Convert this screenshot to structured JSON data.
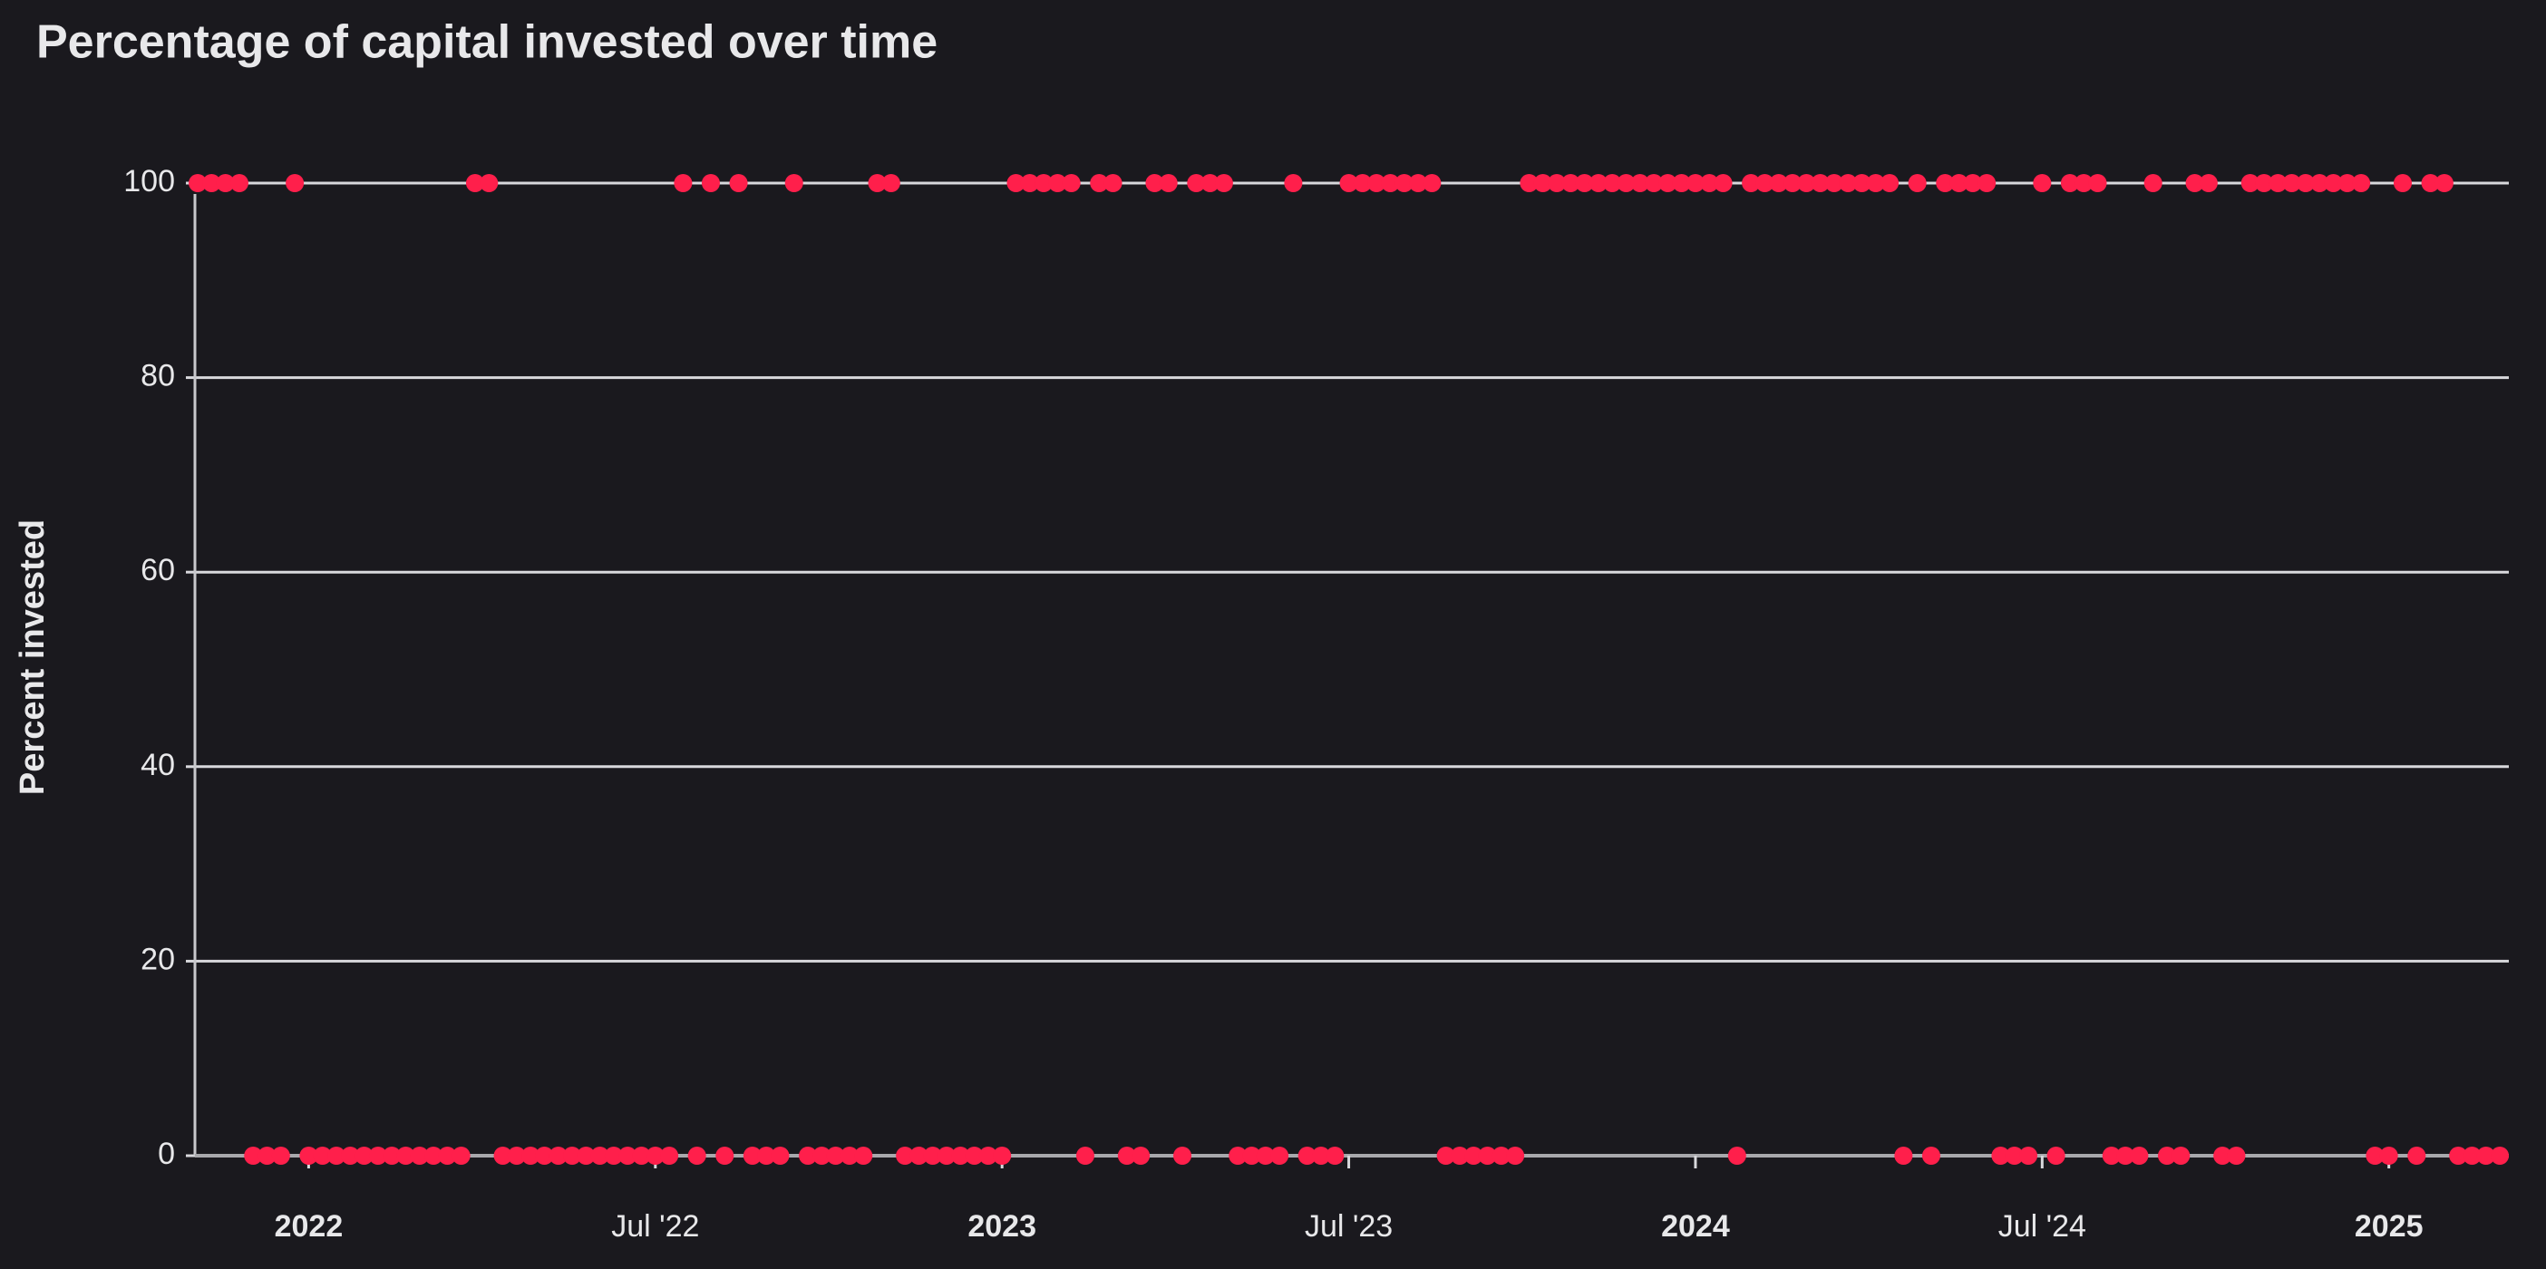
{
  "chart_data": {
    "type": "scatter",
    "title": "Percentage of capital invested over time",
    "y_label": "Percent invested",
    "color": "#ff1f4b",
    "grid": true,
    "xlim": [
      2021.836,
      2025.173
    ],
    "xticks": [
      2022,
      {
        "value": 2022.5,
        "label": "Jul '22"
      },
      2023,
      {
        "value": 2023.5,
        "label": "Jul '23"
      },
      2024,
      {
        "value": 2024.5,
        "label": "Jul '24"
      },
      2025
    ],
    "ylim": [
      0,
      100
    ],
    "yticks": [
      0,
      20,
      40,
      60,
      80,
      100
    ],
    "x": [
      2021.84,
      2021.86,
      2021.88,
      2021.9,
      2021.92,
      2021.94,
      2021.96,
      2021.98,
      2022.0,
      2022.02,
      2022.04,
      2022.06,
      2022.08,
      2022.1,
      2022.12,
      2022.14,
      2022.16,
      2022.18,
      2022.2,
      2022.22,
      2022.24,
      2022.26,
      2022.28,
      2022.3,
      2022.32,
      2022.34,
      2022.36,
      2022.38,
      2022.4,
      2022.42,
      2022.44,
      2022.46,
      2022.48,
      2022.5,
      2022.52,
      2022.54,
      2022.56,
      2022.58,
      2022.6,
      2022.62,
      2022.64,
      2022.66,
      2022.68,
      2022.7,
      2022.72,
      2022.74,
      2022.76,
      2022.78,
      2022.8,
      2022.82,
      2022.84,
      2022.86,
      2022.88,
      2022.9,
      2022.92,
      2022.94,
      2022.96,
      2022.98,
      2023.0,
      2023.02,
      2023.04,
      2023.06,
      2023.08,
      2023.1,
      2023.12,
      2023.14,
      2023.16,
      2023.18,
      2023.2,
      2023.22,
      2023.24,
      2023.26,
      2023.28,
      2023.3,
      2023.32,
      2023.34,
      2023.36,
      2023.38,
      2023.4,
      2023.42,
      2023.44,
      2023.46,
      2023.48,
      2023.5,
      2023.52,
      2023.54,
      2023.56,
      2023.58,
      2023.6,
      2023.62,
      2023.64,
      2023.66,
      2023.68,
      2023.7,
      2023.72,
      2023.74,
      2023.76,
      2023.78,
      2023.8,
      2023.82,
      2023.84,
      2023.86,
      2023.88,
      2023.9,
      2023.92,
      2023.94,
      2023.96,
      2023.98,
      2024.0,
      2024.02,
      2024.04,
      2024.06,
      2024.08,
      2024.1,
      2024.12,
      2024.14,
      2024.16,
      2024.18,
      2024.2,
      2024.22,
      2024.24,
      2024.26,
      2024.28,
      2024.3,
      2024.32,
      2024.34,
      2024.36,
      2024.38,
      2024.4,
      2024.42,
      2024.44,
      2024.46,
      2024.48,
      2024.5,
      2024.52,
      2024.54,
      2024.56,
      2024.58,
      2024.6,
      2024.62,
      2024.64,
      2024.66,
      2024.68,
      2024.7,
      2024.72,
      2024.74,
      2024.76,
      2024.78,
      2024.8,
      2024.82,
      2024.84,
      2024.86,
      2024.88,
      2024.9,
      2024.92,
      2024.94,
      2024.96,
      2024.98,
      2025.0,
      2025.02,
      2025.04,
      2025.06,
      2025.08,
      2025.1,
      2025.12,
      2025.14,
      2025.16
    ],
    "values": [
      100,
      100,
      100,
      100,
      0,
      0,
      0,
      100,
      0,
      0,
      0,
      0,
      0,
      0,
      0,
      0,
      0,
      0,
      0,
      0,
      100,
      100,
      0,
      0,
      0,
      0,
      0,
      0,
      0,
      0,
      0,
      0,
      0,
      0,
      0,
      100,
      0,
      100,
      0,
      100,
      0,
      0,
      0,
      100,
      0,
      0,
      0,
      0,
      0,
      100,
      100,
      0,
      0,
      0,
      0,
      0,
      0,
      0,
      0,
      100,
      100,
      100,
      100,
      100,
      0,
      100,
      100,
      0,
      0,
      100,
      100,
      0,
      100,
      100,
      100,
      0,
      0,
      0,
      0,
      100,
      0,
      0,
      0,
      100,
      100,
      100,
      100,
      100,
      100,
      100,
      0,
      0,
      0,
      0,
      0,
      0,
      100,
      100,
      100,
      100,
      100,
      100,
      100,
      100,
      100,
      100,
      100,
      100,
      100,
      100,
      100,
      0,
      100,
      100,
      100,
      100,
      100,
      100,
      100,
      100,
      100,
      100,
      100,
      0,
      100,
      0,
      100,
      100,
      100,
      100,
      0,
      0,
      0,
      100,
      0,
      100,
      100,
      100,
      0,
      0,
      0,
      100,
      0,
      0,
      100,
      100,
      0,
      0,
      100,
      100,
      100,
      100,
      100,
      100,
      100,
      100,
      100,
      0,
      0,
      100,
      0,
      100,
      100,
      0,
      0,
      0,
      0
    ]
  }
}
